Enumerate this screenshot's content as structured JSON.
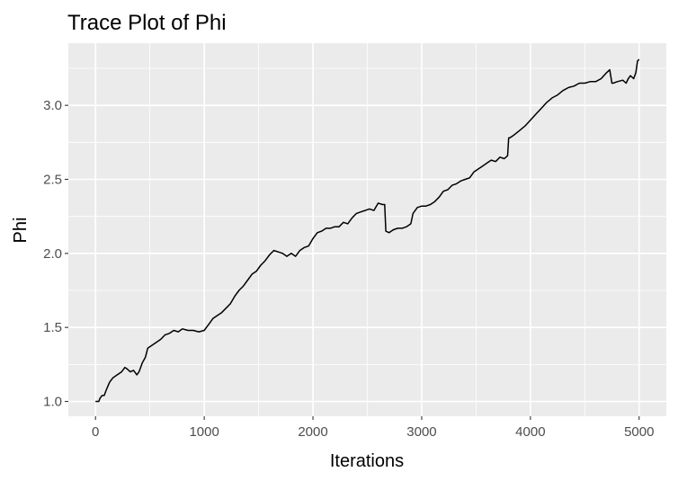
{
  "chart_data": {
    "type": "line",
    "title": "Trace Plot of Phi",
    "xlabel": "Iterations",
    "ylabel": "Phi",
    "xlim": [
      -250,
      5250
    ],
    "ylim": [
      0.9,
      3.42
    ],
    "x_ticks": [
      0,
      1000,
      2000,
      3000,
      4000,
      5000
    ],
    "x_tick_labels": [
      "0",
      "1000",
      "2000",
      "3000",
      "4000",
      "5000"
    ],
    "y_ticks": [
      1.0,
      1.5,
      2.0,
      2.5,
      3.0
    ],
    "y_tick_labels": [
      "1.0",
      "1.5",
      "2.0",
      "2.5",
      "3.0"
    ],
    "x_minor": [
      500,
      1500,
      2500,
      3500,
      4500
    ],
    "y_minor": [
      1.25,
      1.75,
      2.25,
      2.75,
      3.25
    ],
    "grid": true,
    "panel_color": "#ebebeb",
    "line_color": "#000000",
    "series": [
      {
        "x": [
          0,
          30,
          40,
          60,
          80,
          100,
          130,
          160,
          200,
          240,
          270,
          290,
          320,
          350,
          380,
          400,
          430,
          460,
          480,
          520,
          560,
          600,
          640,
          680,
          720,
          760,
          800,
          850,
          900,
          950,
          1000,
          1040,
          1080,
          1120,
          1160,
          1200,
          1240,
          1280,
          1320,
          1360,
          1400,
          1440,
          1480,
          1520,
          1560,
          1600,
          1640,
          1680,
          1720,
          1760,
          1800,
          1840,
          1880,
          1920,
          1960,
          2000,
          2040,
          2080,
          2120,
          2160,
          2200,
          2240,
          2280,
          2320,
          2360,
          2400,
          2440,
          2480,
          2520,
          2560,
          2600,
          2640,
          2660,
          2670,
          2700,
          2740,
          2780,
          2820,
          2860,
          2880,
          2900,
          2920,
          2960,
          3000,
          3040,
          3080,
          3120,
          3160,
          3200,
          3240,
          3280,
          3320,
          3360,
          3400,
          3440,
          3480,
          3520,
          3560,
          3600,
          3640,
          3680,
          3720,
          3760,
          3790,
          3800,
          3810,
          3850,
          3900,
          3950,
          4000,
          4050,
          4100,
          4150,
          4200,
          4250,
          4300,
          4350,
          4400,
          4450,
          4500,
          4550,
          4600,
          4650,
          4700,
          4730,
          4750,
          4760,
          4800,
          4850,
          4880,
          4900,
          4920,
          4950,
          4970,
          4985,
          5000
        ],
        "y": [
          1.0,
          1.0,
          1.02,
          1.04,
          1.04,
          1.08,
          1.13,
          1.16,
          1.18,
          1.2,
          1.23,
          1.22,
          1.2,
          1.21,
          1.18,
          1.2,
          1.26,
          1.3,
          1.36,
          1.38,
          1.4,
          1.42,
          1.45,
          1.46,
          1.48,
          1.47,
          1.49,
          1.48,
          1.48,
          1.47,
          1.48,
          1.52,
          1.56,
          1.58,
          1.6,
          1.63,
          1.66,
          1.71,
          1.75,
          1.78,
          1.82,
          1.86,
          1.88,
          1.92,
          1.95,
          1.99,
          2.02,
          2.01,
          2.0,
          1.98,
          2.0,
          1.98,
          2.02,
          2.04,
          2.05,
          2.1,
          2.14,
          2.15,
          2.17,
          2.17,
          2.18,
          2.18,
          2.21,
          2.2,
          2.24,
          2.27,
          2.28,
          2.29,
          2.3,
          2.29,
          2.34,
          2.33,
          2.33,
          2.15,
          2.14,
          2.16,
          2.17,
          2.17,
          2.18,
          2.19,
          2.2,
          2.27,
          2.31,
          2.32,
          2.32,
          2.33,
          2.35,
          2.38,
          2.42,
          2.43,
          2.46,
          2.47,
          2.49,
          2.5,
          2.51,
          2.55,
          2.57,
          2.59,
          2.61,
          2.63,
          2.62,
          2.65,
          2.64,
          2.66,
          2.78,
          2.78,
          2.8,
          2.83,
          2.86,
          2.9,
          2.94,
          2.98,
          3.02,
          3.05,
          3.07,
          3.1,
          3.12,
          3.13,
          3.15,
          3.15,
          3.16,
          3.16,
          3.18,
          3.22,
          3.24,
          3.15,
          3.15,
          3.16,
          3.17,
          3.15,
          3.18,
          3.2,
          3.18,
          3.22,
          3.3,
          3.31
        ]
      }
    ]
  }
}
